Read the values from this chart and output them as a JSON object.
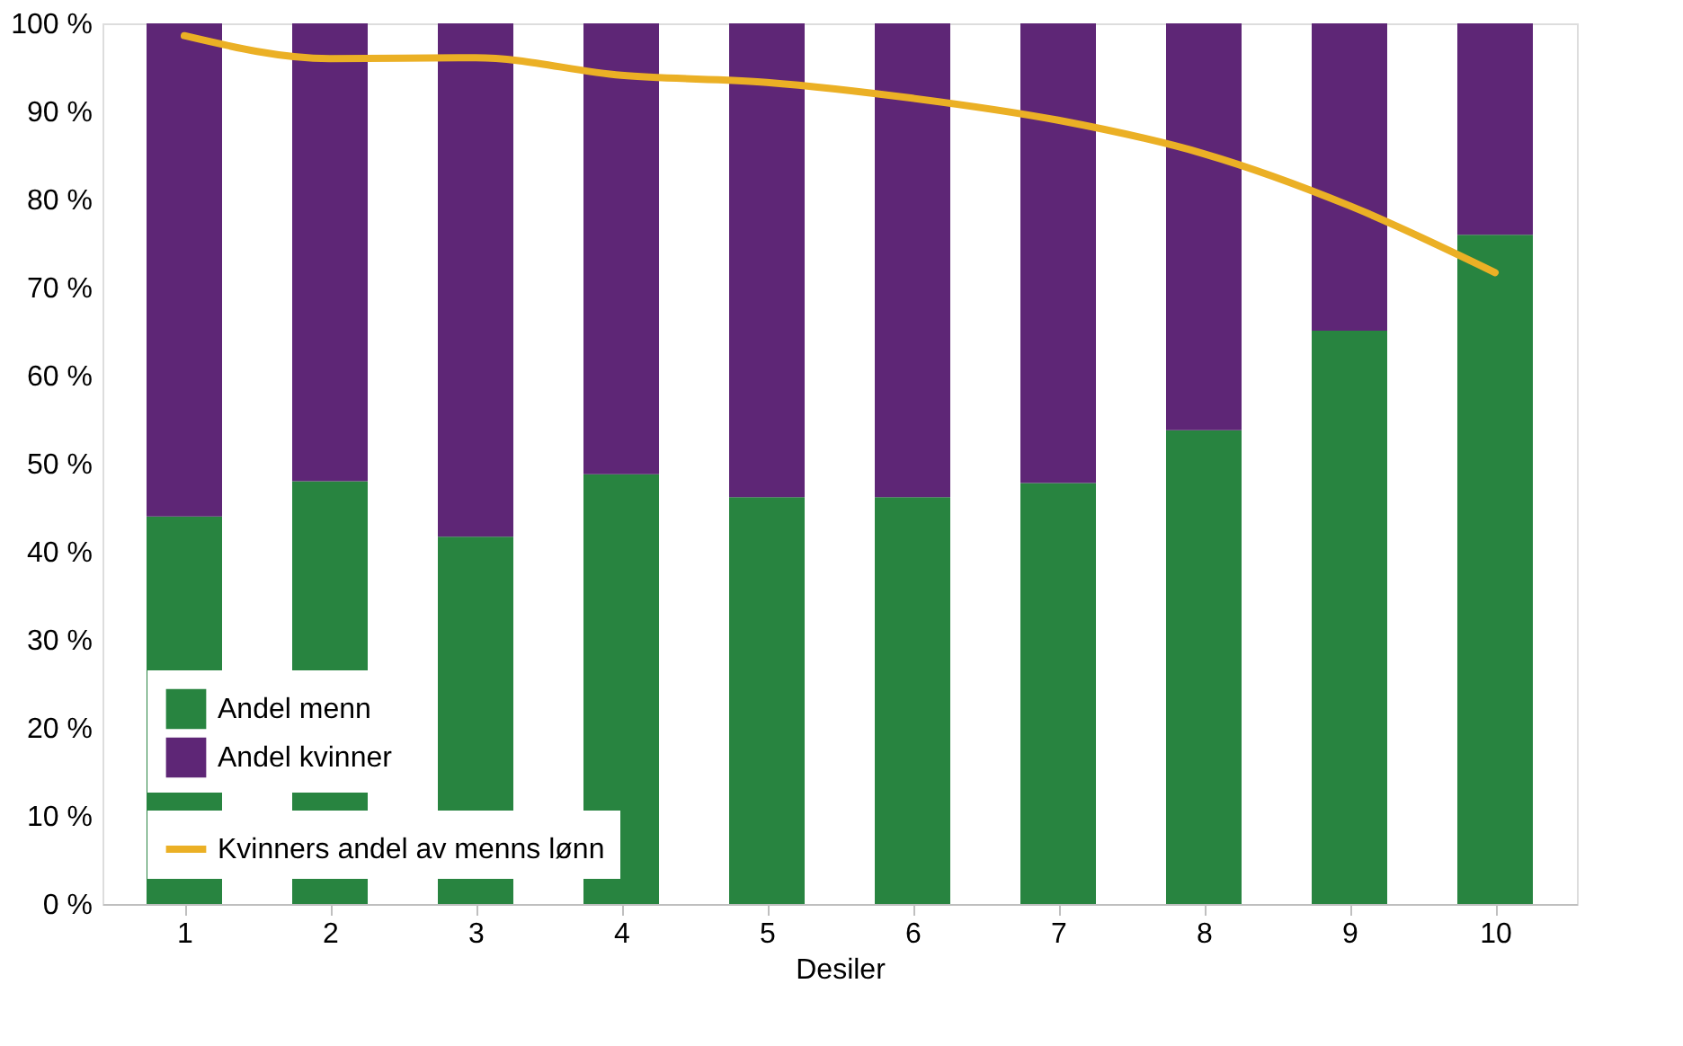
{
  "chart_data": {
    "type": "bar",
    "stacked": true,
    "xlabel": "Desiler",
    "categories": [
      "1",
      "2",
      "3",
      "4",
      "5",
      "6",
      "7",
      "8",
      "9",
      "10"
    ],
    "series": [
      {
        "name": "Andel menn",
        "color": "#288440",
        "values": [
          44,
          48,
          41.7,
          48.8,
          46.2,
          46.2,
          47.8,
          53.8,
          65.1,
          76
        ]
      },
      {
        "name": "Andel kvinner",
        "color": "#5e2676",
        "values": [
          56,
          52,
          58.3,
          51.2,
          53.8,
          53.8,
          52.2,
          46.2,
          34.9,
          24
        ]
      },
      {
        "name": "Kvinners andel av menns lønn",
        "type": "line",
        "color": "#ebb025",
        "values": [
          98.6,
          96,
          96.1,
          94.1,
          93.3,
          91.5,
          89,
          85.2,
          79.3,
          71.7
        ]
      }
    ],
    "ylim": [
      0,
      100
    ],
    "yticks": [
      {
        "value": 0,
        "label": "0 %"
      },
      {
        "value": 10,
        "label": "10 %"
      },
      {
        "value": 20,
        "label": "20 %"
      },
      {
        "value": 30,
        "label": "30 %"
      },
      {
        "value": 40,
        "label": "40 %"
      },
      {
        "value": 50,
        "label": "50 %"
      },
      {
        "value": 60,
        "label": "60 %"
      },
      {
        "value": 70,
        "label": "70 %"
      },
      {
        "value": 80,
        "label": "80 %"
      },
      {
        "value": 90,
        "label": "90 %"
      },
      {
        "value": 100,
        "label": "100 %"
      }
    ],
    "grid": false,
    "legend": "bottom left",
    "marker": "none",
    "line_style": "solid"
  }
}
